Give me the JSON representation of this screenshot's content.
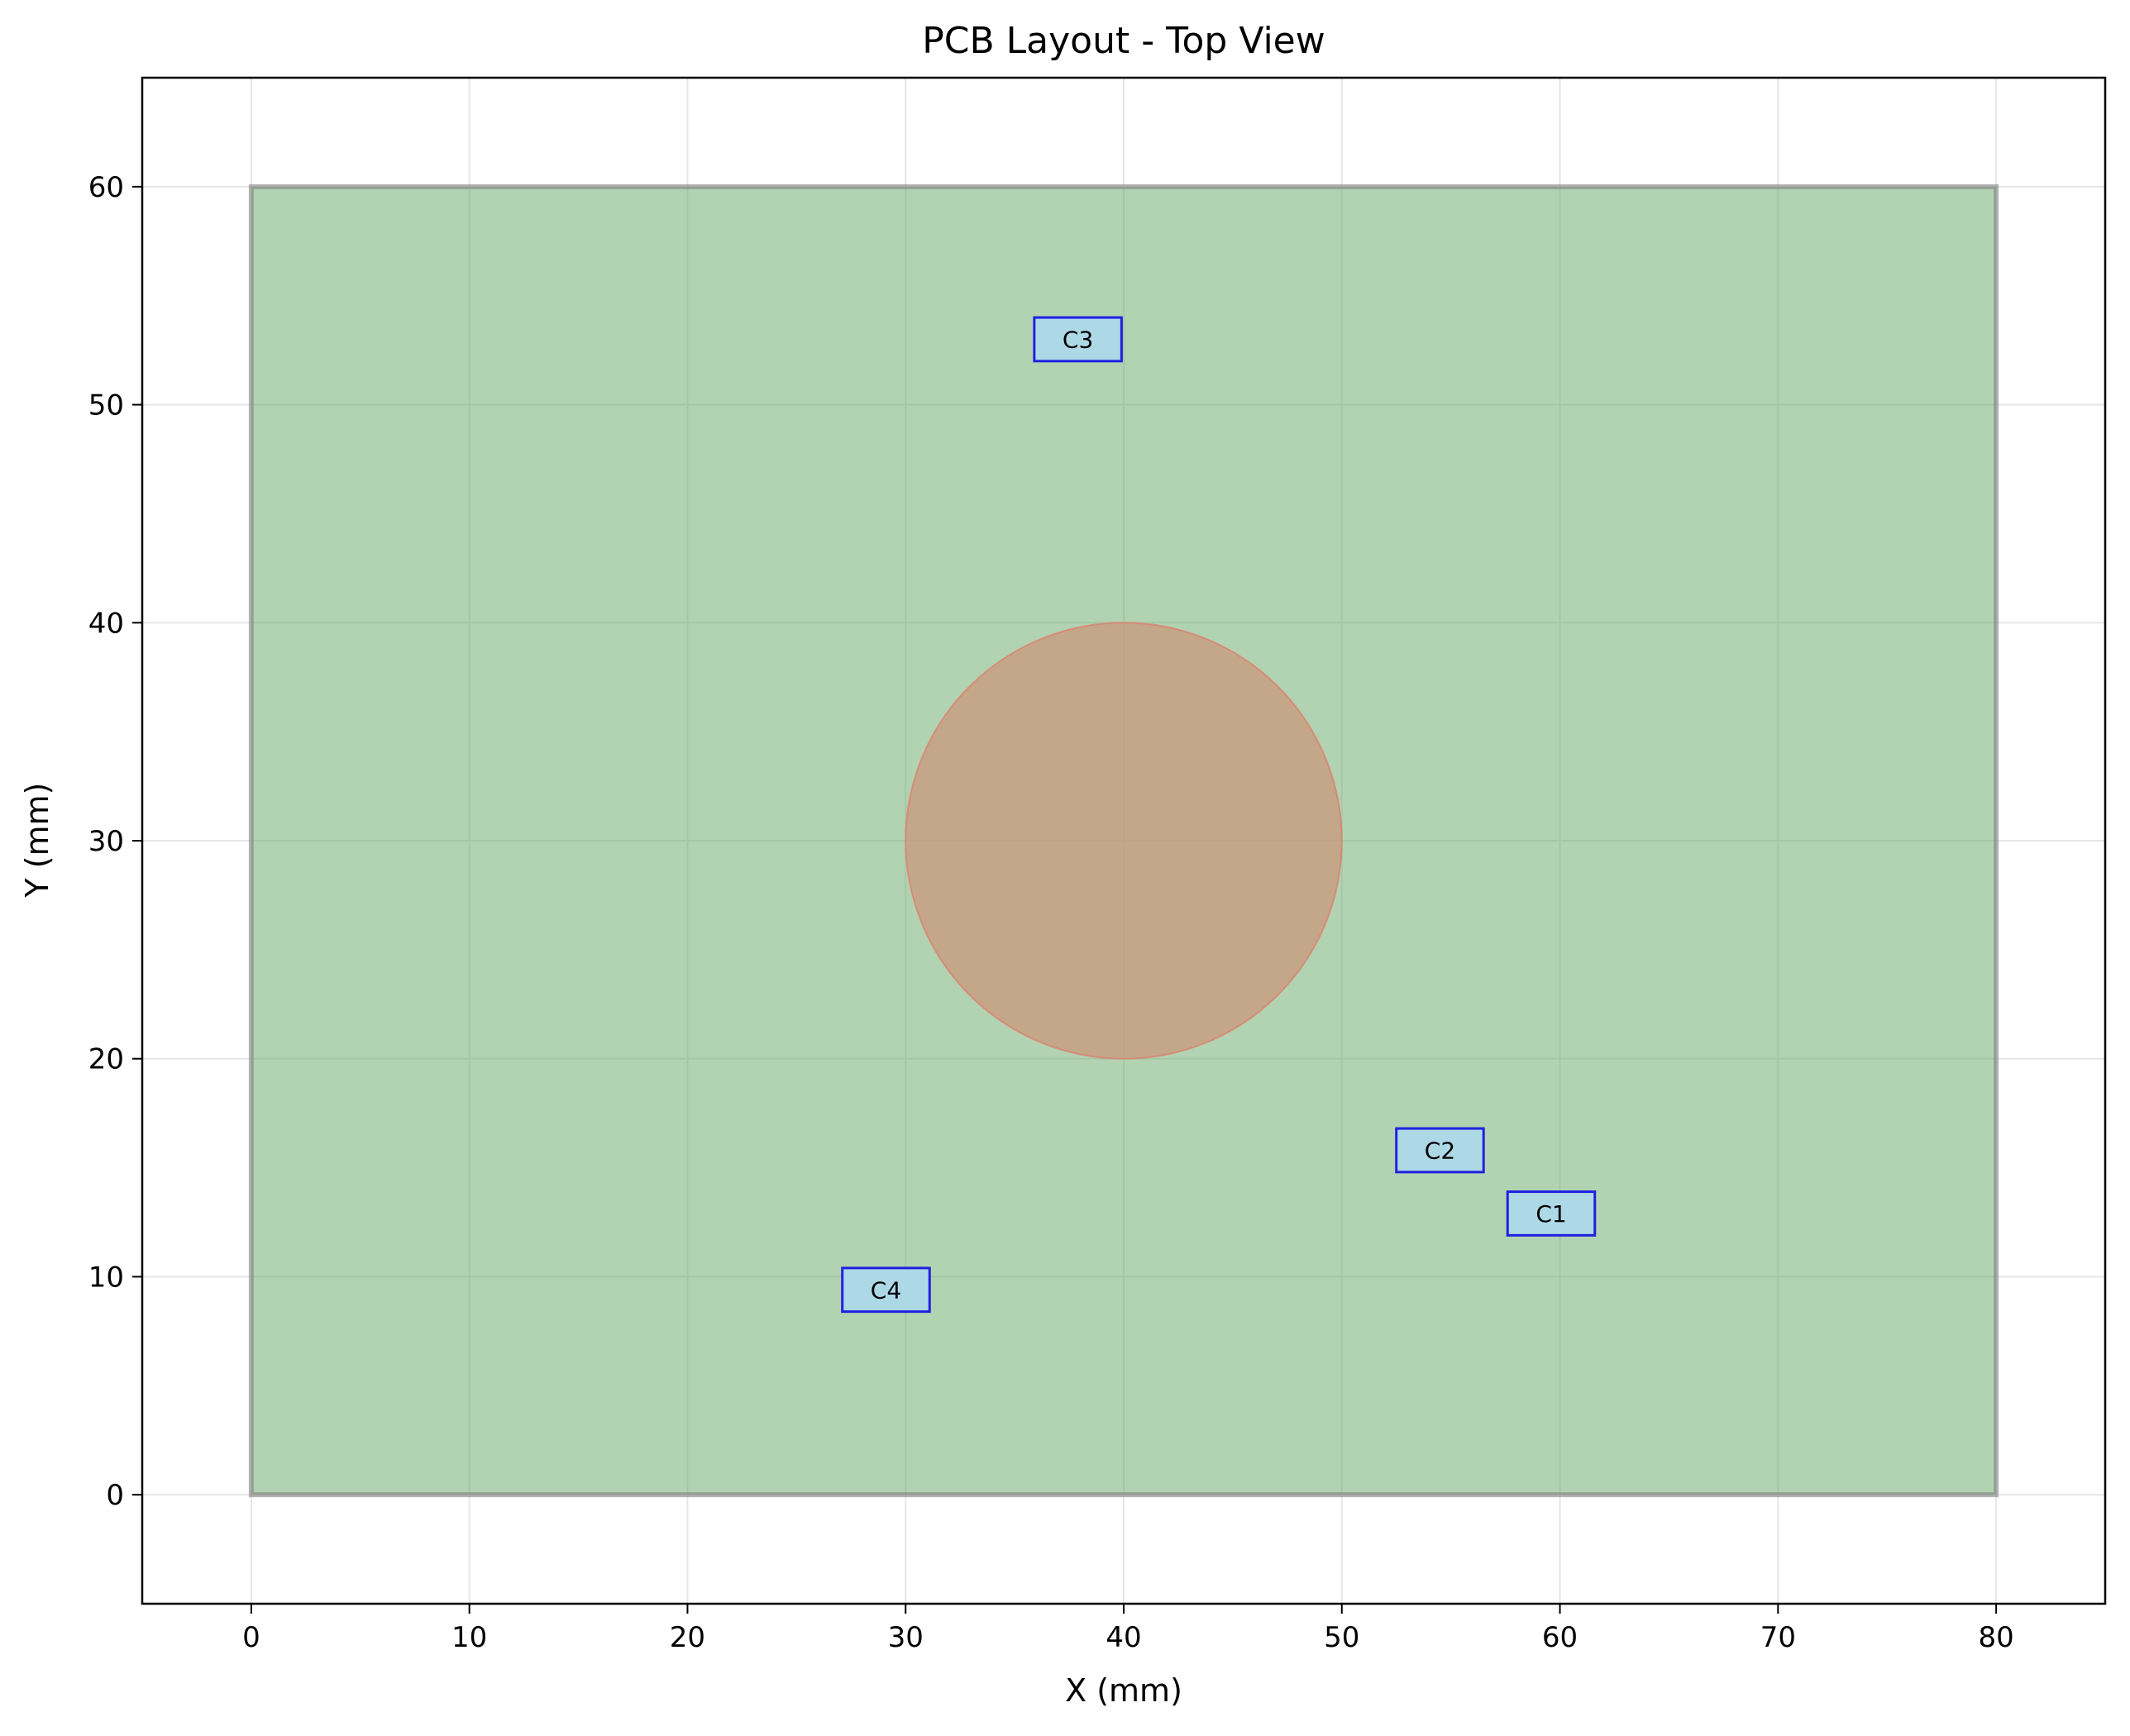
{
  "chart_data": {
    "type": "layout",
    "title": "PCB Layout - Top View",
    "xlabel": "X (mm)",
    "ylabel": "Y (mm)",
    "xlim": [
      -5,
      85
    ],
    "ylim": [
      -5,
      65
    ],
    "xticks": [
      0,
      10,
      20,
      30,
      40,
      50,
      60,
      70,
      80
    ],
    "yticks": [
      0,
      10,
      20,
      30,
      40,
      50,
      60
    ],
    "grid": true,
    "board": {
      "x": 0,
      "y": 0,
      "width": 80,
      "height": 60,
      "fill": "#66a866",
      "stroke": "#808080"
    },
    "keepout_circle": {
      "cx": 40,
      "cy": 30,
      "r": 10,
      "fill": "#c9977a",
      "stroke": "#e07b6a"
    },
    "components": [
      {
        "label": "C1",
        "x": 59.6,
        "y": 12.9,
        "width": 4,
        "height": 2
      },
      {
        "label": "C2",
        "x": 54.5,
        "y": 15.8,
        "width": 4,
        "height": 2
      },
      {
        "label": "C3",
        "x": 37.9,
        "y": 53.0,
        "width": 4,
        "height": 2
      },
      {
        "label": "C4",
        "x": 29.1,
        "y": 9.4,
        "width": 4,
        "height": 2
      }
    ],
    "component_fill": "#add8e6",
    "component_stroke": "#2020e0"
  }
}
